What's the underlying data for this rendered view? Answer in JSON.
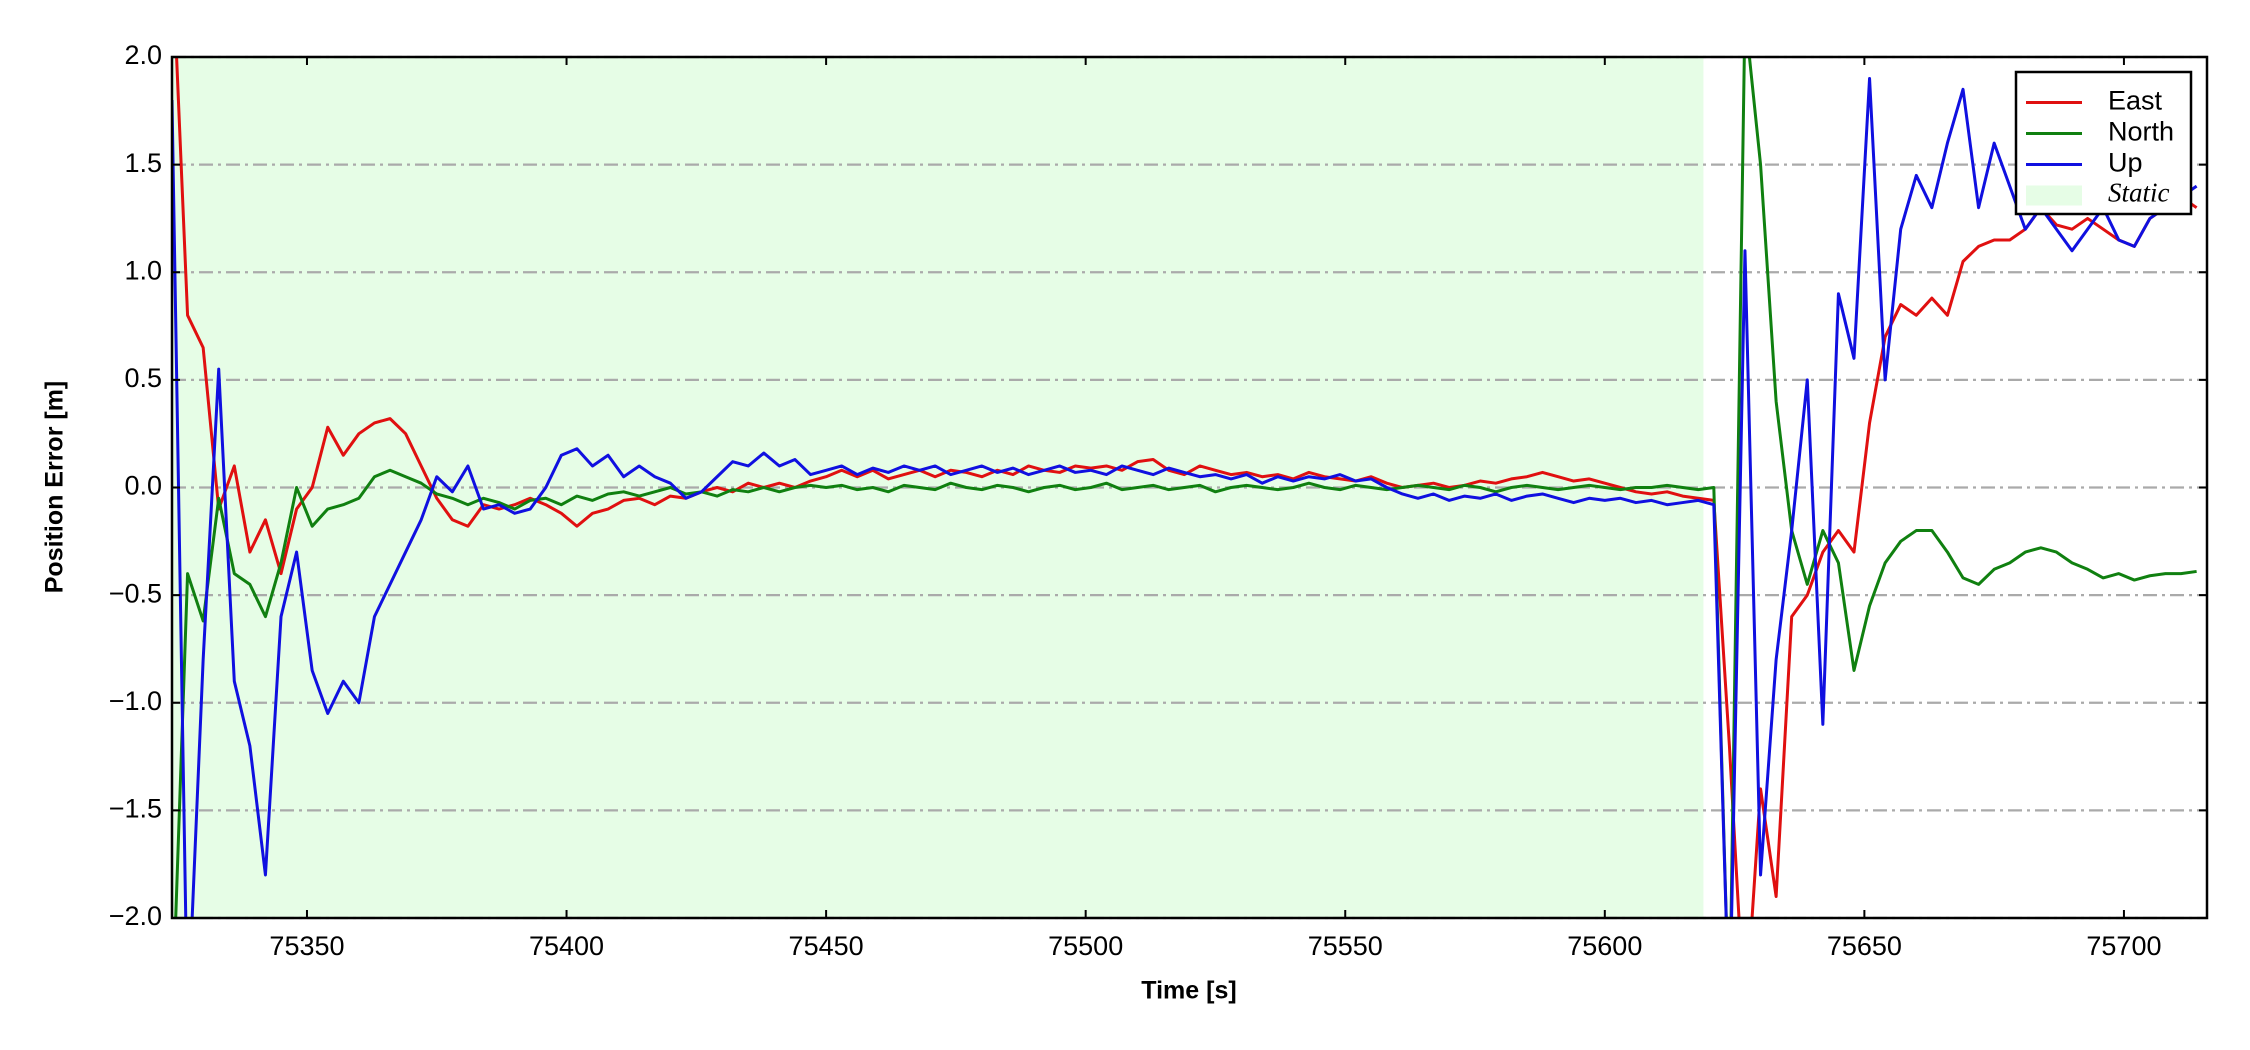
{
  "chart_data": {
    "type": "line",
    "xlabel": "Time [s]",
    "ylabel": "Position Error [m]",
    "xlim": [
      75324,
      75716
    ],
    "ylim": [
      -2,
      2
    ],
    "xticks": [
      75350,
      75400,
      75450,
      75500,
      75550,
      75600,
      75650,
      75700
    ],
    "yticks": [
      {
        "value": -2,
        "label": "−2.0"
      },
      {
        "value": -1.5,
        "label": "−1.5"
      },
      {
        "value": -1,
        "label": "−1.0"
      },
      {
        "value": -0.5,
        "label": "−0.5"
      },
      {
        "value": 0,
        "label": "0.0"
      },
      0.5,
      {
        "value": 1,
        "label": "1.0"
      },
      1.5,
      {
        "value": 2,
        "label": "2.0"
      }
    ],
    "grid": true,
    "legend": "upper right",
    "spans": [
      {
        "name": "Static",
        "color": "#e6fde6",
        "x": [
          75324,
          75619
        ]
      }
    ],
    "x": [
      75324,
      75327,
      75330,
      75333,
      75336,
      75339,
      75342,
      75345,
      75348,
      75351,
      75354,
      75357,
      75360,
      75363,
      75366,
      75369,
      75372,
      75375,
      75378,
      75381,
      75384,
      75387,
      75390,
      75393,
      75396,
      75399,
      75402,
      75405,
      75408,
      75411,
      75414,
      75417,
      75420,
      75423,
      75426,
      75429,
      75432,
      75435,
      75438,
      75441,
      75444,
      75447,
      75450,
      75453,
      75456,
      75459,
      75462,
      75465,
      75468,
      75471,
      75474,
      75477,
      75480,
      75483,
      75486,
      75489,
      75492,
      75495,
      75498,
      75501,
      75504,
      75507,
      75510,
      75513,
      75516,
      75519,
      75522,
      75525,
      75528,
      75531,
      75534,
      75537,
      75540,
      75543,
      75546,
      75549,
      75552,
      75555,
      75558,
      75561,
      75564,
      75567,
      75570,
      75573,
      75576,
      75579,
      75582,
      75585,
      75588,
      75591,
      75594,
      75597,
      75600,
      75603,
      75606,
      75609,
      75612,
      75615,
      75618,
      75621,
      75624,
      75627,
      75630,
      75633,
      75636,
      75639,
      75642,
      75645,
      75648,
      75651,
      75654,
      75657,
      75660,
      75663,
      75666,
      75669,
      75672,
      75675,
      75678,
      75681,
      75684,
      75687,
      75690,
      75693,
      75696,
      75699,
      75702,
      75705,
      75708,
      75711,
      75714
    ],
    "series": [
      {
        "name": "East",
        "color": "#e01010",
        "values": [
          2.5,
          0.8,
          0.65,
          -0.1,
          0.1,
          -0.3,
          -0.15,
          -0.4,
          -0.1,
          0.0,
          0.28,
          0.15,
          0.25,
          0.3,
          0.32,
          0.25,
          0.1,
          -0.05,
          -0.15,
          -0.18,
          -0.08,
          -0.1,
          -0.08,
          -0.05,
          -0.08,
          -0.12,
          -0.18,
          -0.12,
          -0.1,
          -0.06,
          -0.05,
          -0.08,
          -0.04,
          -0.05,
          -0.02,
          0.0,
          -0.02,
          0.02,
          0.0,
          0.02,
          0.0,
          0.03,
          0.05,
          0.08,
          0.05,
          0.08,
          0.04,
          0.06,
          0.08,
          0.05,
          0.08,
          0.07,
          0.05,
          0.08,
          0.06,
          0.1,
          0.08,
          0.07,
          0.1,
          0.09,
          0.1,
          0.08,
          0.12,
          0.13,
          0.08,
          0.06,
          0.1,
          0.08,
          0.06,
          0.07,
          0.05,
          0.06,
          0.04,
          0.07,
          0.05,
          0.04,
          0.03,
          0.05,
          0.02,
          0.0,
          0.01,
          0.02,
          0.0,
          0.01,
          0.03,
          0.02,
          0.04,
          0.05,
          0.07,
          0.05,
          0.03,
          0.04,
          0.02,
          0.0,
          -0.02,
          -0.03,
          -0.02,
          -0.04,
          -0.05,
          -0.06,
          -1.2,
          -2.5,
          -1.4,
          -1.9,
          -0.6,
          -0.5,
          -0.3,
          -0.2,
          -0.3,
          0.3,
          0.7,
          0.85,
          0.8,
          0.88,
          0.8,
          1.05,
          1.12,
          1.15,
          1.15,
          1.2,
          1.3,
          1.22,
          1.2,
          1.25,
          1.2,
          1.15,
          1.12,
          1.25,
          1.3,
          1.35,
          1.3
        ]
      },
      {
        "name": "North",
        "color": "#108010",
        "values": [
          -2.5,
          -0.4,
          -0.62,
          -0.05,
          -0.4,
          -0.45,
          -0.6,
          -0.35,
          0.0,
          -0.18,
          -0.1,
          -0.08,
          -0.05,
          0.05,
          0.08,
          0.05,
          0.02,
          -0.03,
          -0.05,
          -0.08,
          -0.05,
          -0.07,
          -0.1,
          -0.06,
          -0.05,
          -0.08,
          -0.04,
          -0.06,
          -0.03,
          -0.02,
          -0.04,
          -0.02,
          0.0,
          -0.03,
          -0.02,
          -0.04,
          -0.01,
          -0.02,
          0.0,
          -0.02,
          0.0,
          0.01,
          0.0,
          0.01,
          -0.01,
          0.0,
          -0.02,
          0.01,
          0.0,
          -0.01,
          0.02,
          0.0,
          -0.01,
          0.01,
          0.0,
          -0.02,
          0.0,
          0.01,
          -0.01,
          0.0,
          0.02,
          -0.01,
          0.0,
          0.01,
          -0.01,
          0.0,
          0.01,
          -0.02,
          0.0,
          0.01,
          0.0,
          -0.01,
          0.0,
          0.02,
          0.0,
          -0.01,
          0.01,
          0.0,
          -0.01,
          0.0,
          0.01,
          0.0,
          -0.01,
          0.01,
          0.0,
          -0.02,
          0.0,
          0.01,
          0.0,
          -0.01,
          0.0,
          0.01,
          0.0,
          -0.01,
          0.0,
          0.0,
          0.01,
          0.0,
          -0.01,
          0.0,
          -2.5,
          2.2,
          1.5,
          0.4,
          -0.2,
          -0.45,
          -0.2,
          -0.35,
          -0.85,
          -0.55,
          -0.35,
          -0.25,
          -0.2,
          -0.2,
          -0.3,
          -0.42,
          -0.45,
          -0.38,
          -0.35,
          -0.3,
          -0.28,
          -0.3,
          -0.35,
          -0.38,
          -0.42,
          -0.4,
          -0.43,
          -0.41,
          -0.4,
          -0.4,
          -0.39
        ]
      },
      {
        "name": "Up",
        "color": "#1010e0",
        "values": [
          1.8,
          -2.5,
          -0.8,
          0.55,
          -0.9,
          -1.2,
          -1.8,
          -0.6,
          -0.3,
          -0.85,
          -1.05,
          -0.9,
          -1.0,
          -0.6,
          -0.45,
          -0.3,
          -0.15,
          0.05,
          -0.02,
          0.1,
          -0.1,
          -0.08,
          -0.12,
          -0.1,
          0.0,
          0.15,
          0.18,
          0.1,
          0.15,
          0.05,
          0.1,
          0.05,
          0.02,
          -0.05,
          -0.02,
          0.05,
          0.12,
          0.1,
          0.16,
          0.1,
          0.13,
          0.06,
          0.08,
          0.1,
          0.06,
          0.09,
          0.07,
          0.1,
          0.08,
          0.1,
          0.06,
          0.08,
          0.1,
          0.07,
          0.09,
          0.06,
          0.08,
          0.1,
          0.07,
          0.08,
          0.06,
          0.1,
          0.08,
          0.06,
          0.09,
          0.07,
          0.05,
          0.06,
          0.04,
          0.06,
          0.02,
          0.05,
          0.03,
          0.05,
          0.04,
          0.06,
          0.03,
          0.04,
          0.0,
          -0.03,
          -0.05,
          -0.03,
          -0.06,
          -0.04,
          -0.05,
          -0.03,
          -0.06,
          -0.04,
          -0.03,
          -0.05,
          -0.07,
          -0.05,
          -0.06,
          -0.05,
          -0.07,
          -0.06,
          -0.08,
          -0.07,
          -0.06,
          -0.08,
          -2.5,
          1.1,
          -1.8,
          -0.8,
          -0.2,
          0.5,
          -1.1,
          0.9,
          0.6,
          1.9,
          0.5,
          1.2,
          1.45,
          1.3,
          1.6,
          1.85,
          1.3,
          1.6,
          1.4,
          1.2,
          1.3,
          1.2,
          1.1,
          1.2,
          1.3,
          1.15,
          1.12,
          1.25,
          1.3,
          1.35,
          1.4
        ]
      }
    ]
  }
}
